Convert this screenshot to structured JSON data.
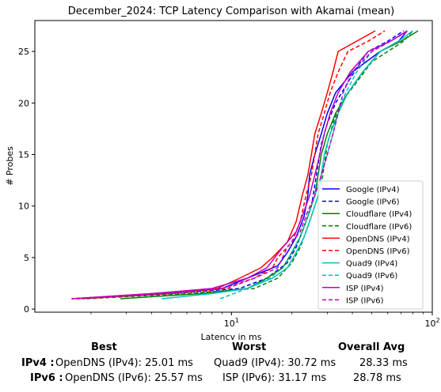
{
  "chart_data": {
    "type": "line",
    "title": "December_2024: TCP Latency Comparison with Akamai (mean)",
    "xlabel": "Latency in ms",
    "ylabel": "# Probes",
    "xscale": "log",
    "xlim": [
      1.05,
      100
    ],
    "ylim": [
      -0.3,
      28
    ],
    "x_ticks": [
      {
        "value": 10,
        "label": "10^1"
      },
      {
        "value": 100,
        "label": "10^2"
      }
    ],
    "y_ticks": [
      0,
      5,
      10,
      15,
      20,
      25
    ],
    "grid": false,
    "legend": "bottom-right",
    "series": [
      {
        "name": "Google (IPv4)",
        "color": "#0000ff",
        "dash": "solid",
        "points": [
          [
            1.6,
            1
          ],
          [
            4.5,
            1.5
          ],
          [
            9,
            2
          ],
          [
            12,
            3
          ],
          [
            17,
            4.2
          ],
          [
            19,
            5.5
          ],
          [
            21,
            7
          ],
          [
            23,
            9
          ],
          [
            24,
            11
          ],
          [
            24.5,
            13
          ],
          [
            26,
            15
          ],
          [
            28,
            17
          ],
          [
            30,
            19
          ],
          [
            33,
            21
          ],
          [
            40,
            23
          ],
          [
            55,
            25
          ],
          [
            68,
            26
          ],
          [
            75,
            27
          ]
        ]
      },
      {
        "name": "Google (IPv6)",
        "color": "#0000ff",
        "dash": "dashed",
        "points": [
          [
            1.7,
            1
          ],
          [
            5,
            1.5
          ],
          [
            11,
            2
          ],
          [
            15,
            3
          ],
          [
            19,
            4.5
          ],
          [
            21,
            6
          ],
          [
            23,
            8
          ],
          [
            25,
            10
          ],
          [
            26,
            12
          ],
          [
            27,
            14
          ],
          [
            28,
            16
          ],
          [
            30,
            18
          ],
          [
            33,
            20
          ],
          [
            38,
            22
          ],
          [
            44,
            24
          ],
          [
            48,
            25
          ],
          [
            60,
            26
          ],
          [
            72,
            27
          ]
        ]
      },
      {
        "name": "Cloudflare (IPv4)",
        "color": "#008000",
        "dash": "solid",
        "points": [
          [
            2.8,
            1
          ],
          [
            7,
            1.5
          ],
          [
            12,
            2
          ],
          [
            15,
            3
          ],
          [
            18,
            4
          ],
          [
            20,
            5.5
          ],
          [
            22,
            7
          ],
          [
            24,
            9
          ],
          [
            26,
            11
          ],
          [
            27,
            13
          ],
          [
            28,
            15
          ],
          [
            30,
            17
          ],
          [
            33,
            19
          ],
          [
            38,
            21
          ],
          [
            45,
            23
          ],
          [
            55,
            25
          ],
          [
            70,
            26
          ],
          [
            85,
            27
          ]
        ]
      },
      {
        "name": "Cloudflare (IPv6)",
        "color": "#008000",
        "dash": "dashed",
        "points": [
          [
            1.9,
            1
          ],
          [
            6,
            1.5
          ],
          [
            13,
            2
          ],
          [
            17,
            3
          ],
          [
            20,
            4.5
          ],
          [
            22,
            6
          ],
          [
            24,
            8
          ],
          [
            26,
            10
          ],
          [
            28,
            12
          ],
          [
            29,
            14
          ],
          [
            30,
            16
          ],
          [
            32,
            18
          ],
          [
            35,
            20
          ],
          [
            42,
            22
          ],
          [
            50,
            24
          ],
          [
            60,
            25
          ],
          [
            72,
            26
          ],
          [
            80,
            27
          ]
        ]
      },
      {
        "name": "OpenDNS (IPv4)",
        "color": "#ff0000",
        "dash": "solid",
        "points": [
          [
            1.6,
            1
          ],
          [
            4,
            1.5
          ],
          [
            8.5,
            2
          ],
          [
            11,
            3
          ],
          [
            14,
            4
          ],
          [
            16,
            5
          ],
          [
            19,
            6.5
          ],
          [
            21,
            8.5
          ],
          [
            22.5,
            11
          ],
          [
            24,
            13
          ],
          [
            25,
            15
          ],
          [
            26,
            17
          ],
          [
            28,
            19
          ],
          [
            30,
            21
          ],
          [
            32,
            23
          ],
          [
            34,
            25
          ],
          [
            42,
            26
          ],
          [
            52,
            27
          ]
        ]
      },
      {
        "name": "OpenDNS (IPv6)",
        "color": "#ff0000",
        "dash": "dashed",
        "points": [
          [
            1.8,
            1
          ],
          [
            5,
            1.5
          ],
          [
            9.5,
            2
          ],
          [
            13,
            3
          ],
          [
            16,
            4
          ],
          [
            17,
            5
          ],
          [
            20,
            6.5
          ],
          [
            22,
            8.5
          ],
          [
            23.5,
            11
          ],
          [
            25,
            13
          ],
          [
            26,
            15
          ],
          [
            27,
            17
          ],
          [
            29,
            19
          ],
          [
            31,
            21
          ],
          [
            34,
            23
          ],
          [
            38,
            25
          ],
          [
            48,
            26
          ],
          [
            58,
            27
          ]
        ]
      },
      {
        "name": "Quad9 (IPv4)",
        "color": "#00bfbf",
        "dash": "solid",
        "points": [
          [
            4.5,
            1
          ],
          [
            8,
            1.5
          ],
          [
            12,
            2
          ],
          [
            16,
            3
          ],
          [
            19,
            4
          ],
          [
            21,
            5.5
          ],
          [
            23,
            7
          ],
          [
            25,
            9
          ],
          [
            27,
            11
          ],
          [
            28,
            13
          ],
          [
            29,
            15
          ],
          [
            31,
            17
          ],
          [
            34,
            19
          ],
          [
            38,
            21
          ],
          [
            45,
            23
          ],
          [
            55,
            25
          ],
          [
            68,
            26
          ],
          [
            80,
            27
          ]
        ]
      },
      {
        "name": "Quad9 (IPv6)",
        "color": "#00bfbf",
        "dash": "dashed",
        "points": [
          [
            8.8,
            1
          ],
          [
            12,
            2
          ],
          [
            15.5,
            3
          ],
          [
            18,
            4
          ],
          [
            20,
            5.5
          ],
          [
            22,
            7
          ],
          [
            24,
            9
          ],
          [
            26,
            11
          ],
          [
            28,
            13
          ],
          [
            30,
            15
          ],
          [
            32,
            17
          ],
          [
            34,
            19
          ],
          [
            37,
            21
          ],
          [
            42,
            23
          ],
          [
            50,
            25
          ],
          [
            62,
            26
          ],
          [
            75,
            27
          ]
        ]
      },
      {
        "name": "ISP (IPv4)",
        "color": "#bf00bf",
        "dash": "solid",
        "points": [
          [
            1.6,
            1
          ],
          [
            4,
            1.5
          ],
          [
            8,
            2
          ],
          [
            12,
            3
          ],
          [
            15,
            4
          ],
          [
            18,
            6
          ],
          [
            21,
            7.5
          ],
          [
            23,
            9.5
          ],
          [
            24.5,
            11
          ],
          [
            26,
            13
          ],
          [
            27.5,
            15
          ],
          [
            29,
            17
          ],
          [
            31,
            19
          ],
          [
            34,
            21
          ],
          [
            39,
            23
          ],
          [
            48,
            25
          ],
          [
            62,
            26
          ],
          [
            75,
            27
          ]
        ]
      },
      {
        "name": "ISP (IPv6)",
        "color": "#bf00bf",
        "dash": "dashed",
        "points": [
          [
            1.7,
            1
          ],
          [
            4.5,
            1.5
          ],
          [
            9,
            2
          ],
          [
            13,
            3
          ],
          [
            17,
            4
          ],
          [
            19,
            6
          ],
          [
            22,
            7.5
          ],
          [
            24,
            9.5
          ],
          [
            26,
            11
          ],
          [
            28,
            13
          ],
          [
            30,
            15
          ],
          [
            32,
            17
          ],
          [
            34,
            19
          ],
          [
            36,
            21
          ],
          [
            40,
            23
          ],
          [
            50,
            25
          ],
          [
            62,
            26
          ],
          [
            76,
            27
          ]
        ]
      }
    ]
  },
  "summary": {
    "headers": {
      "best": "Best",
      "worst": "Worst",
      "avg": "Overall Avg"
    },
    "rows": [
      {
        "label": "IPv4 :",
        "best": "OpenDNS (IPv4): 25.01 ms",
        "worst": "Quad9 (IPv4): 30.72 ms",
        "avg": "28.33 ms"
      },
      {
        "label": "IPv6 :",
        "best": "OpenDNS (IPv6): 25.57 ms",
        "worst": "ISP (IPv6): 31.17 ms",
        "avg": "28.78 ms"
      }
    ]
  }
}
